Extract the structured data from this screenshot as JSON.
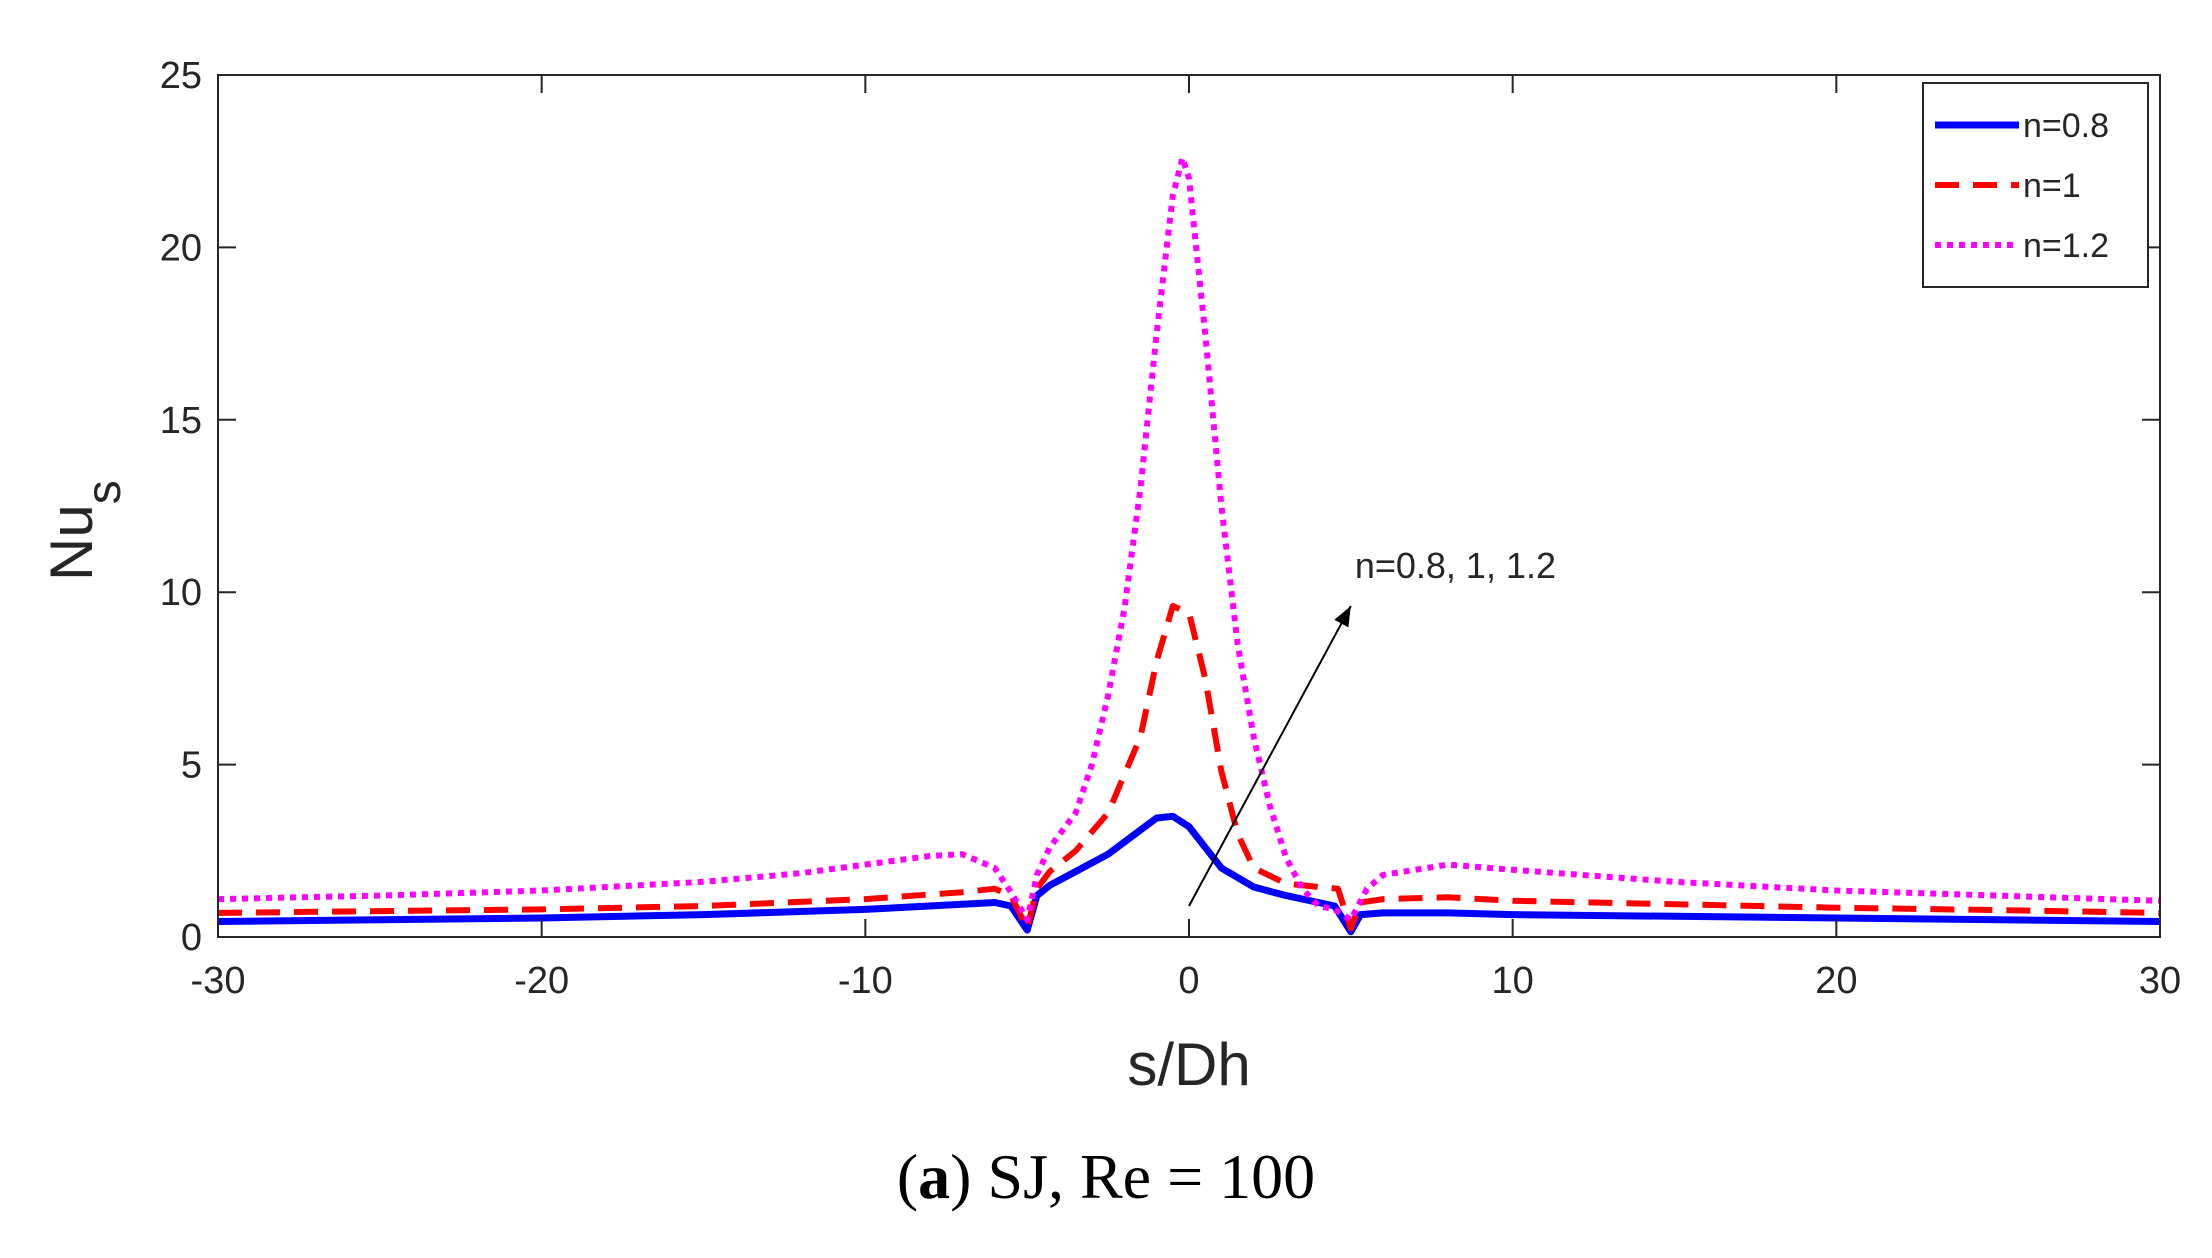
{
  "chart_data": {
    "type": "line",
    "xlabel": "s/Dh",
    "ylabel_main": "Nu",
    "ylabel_sub": "s",
    "xlim": [
      -30,
      30
    ],
    "ylim": [
      0,
      25
    ],
    "xticks": [
      -30,
      -20,
      -10,
      0,
      10,
      20,
      30
    ],
    "xtick_labels": [
      "-30",
      "-20",
      "-10",
      "0",
      "10",
      "20",
      "30"
    ],
    "yticks": [
      0,
      5,
      10,
      15,
      20,
      25
    ],
    "ytick_labels": [
      "0",
      "5",
      "10",
      "15",
      "20",
      "25"
    ],
    "grid": false,
    "legend_position": "top-right",
    "series": [
      {
        "name": "n=0.8",
        "color": "#0000ff",
        "style": "solid",
        "x": [
          -30,
          -25,
          -20,
          -15,
          -10,
          -7,
          -6,
          -5.5,
          -5,
          -4.7,
          -4.3,
          -3.5,
          -2.5,
          -1.5,
          -1,
          -0.5,
          0,
          0.5,
          1,
          2,
          3,
          4,
          4.5,
          5,
          5.3,
          6,
          8,
          10,
          15,
          20,
          25,
          30
        ],
        "y": [
          0.45,
          0.5,
          0.55,
          0.65,
          0.8,
          0.95,
          1.0,
          0.9,
          0.2,
          1.2,
          1.5,
          1.9,
          2.4,
          3.1,
          3.45,
          3.5,
          3.2,
          2.6,
          2.0,
          1.45,
          1.2,
          1.0,
          0.9,
          0.15,
          0.65,
          0.7,
          0.7,
          0.65,
          0.6,
          0.55,
          0.5,
          0.45
        ]
      },
      {
        "name": "n=1",
        "color": "#ff0000",
        "style": "dashed",
        "x": [
          -30,
          -25,
          -20,
          -15,
          -10,
          -7,
          -6,
          -5.5,
          -5,
          -4.7,
          -4.3,
          -3.5,
          -2.5,
          -1.5,
          -1,
          -0.5,
          0,
          0.5,
          1,
          1.5,
          2,
          3,
          4,
          4.6,
          5,
          5.3,
          6,
          8,
          10,
          15,
          20,
          25,
          30
        ],
        "y": [
          0.7,
          0.75,
          0.8,
          0.9,
          1.1,
          1.3,
          1.4,
          1.2,
          0.25,
          1.4,
          1.9,
          2.5,
          3.6,
          5.8,
          8.0,
          9.6,
          9.4,
          7.5,
          4.8,
          3.0,
          2.0,
          1.55,
          1.45,
          1.4,
          0.25,
          1.0,
          1.1,
          1.15,
          1.05,
          0.95,
          0.85,
          0.78,
          0.7
        ]
      },
      {
        "name": "n=1.2",
        "color": "#ff00ff",
        "style": "dotted",
        "x": [
          -30,
          -25,
          -20,
          -15,
          -12,
          -10,
          -8,
          -7,
          -6,
          -5.5,
          -5,
          -4.7,
          -4.3,
          -3.5,
          -3,
          -2.5,
          -2,
          -1.5,
          -1,
          -0.5,
          -0.2,
          0,
          0.5,
          1,
          1.5,
          2,
          2.5,
          3,
          3.5,
          4,
          4.5,
          5,
          5.5,
          6,
          8,
          10,
          15,
          20,
          25,
          30
        ],
        "y": [
          1.1,
          1.2,
          1.35,
          1.6,
          1.85,
          2.1,
          2.35,
          2.4,
          2.0,
          1.3,
          0.5,
          1.8,
          2.6,
          3.6,
          5.0,
          7.0,
          9.5,
          13.0,
          17.5,
          21.5,
          22.6,
          22.0,
          17.5,
          12.5,
          8.5,
          5.8,
          3.8,
          2.3,
          1.4,
          0.9,
          0.8,
          0.5,
          1.4,
          1.8,
          2.1,
          1.95,
          1.6,
          1.35,
          1.2,
          1.05
        ]
      }
    ],
    "annotation": {
      "text": "n=0.8, 1, 1.2",
      "arrow_from": [
        0,
        0.9
      ],
      "arrow_to": [
        5,
        9.6
      ]
    }
  },
  "caption": {
    "letter": "a",
    "text": " SJ, Re = 100"
  }
}
